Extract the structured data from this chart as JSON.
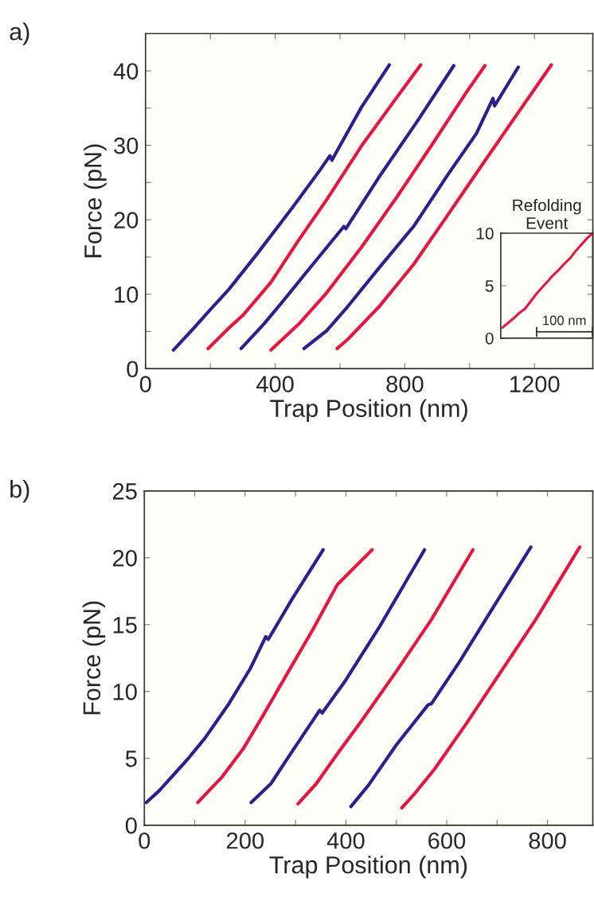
{
  "chart_data": [
    {
      "type": "line",
      "xlabel": "Trap Position (nm)",
      "ylabel": "Force (pN)",
      "annotations": [
        "a)"
      ],
      "xlim": [
        0,
        1380
      ],
      "ylim": [
        0,
        45
      ],
      "xticks": [
        0,
        {
          "value": 200,
          "label": null
        },
        400,
        {
          "value": 600,
          "label": null
        },
        800,
        {
          "value": 1000,
          "label": null
        },
        1200
      ],
      "yticks": [
        0,
        {
          "value": 5,
          "label": null
        },
        10,
        {
          "value": 15,
          "label": null
        },
        20,
        {
          "value": 25,
          "label": null
        },
        30,
        {
          "value": 35,
          "label": null
        },
        40
      ],
      "series": [
        {
          "color": "#2e1f8c",
          "x": [
            86,
            150,
            193,
            258,
            344,
            451,
            537,
            569,
            575,
            666,
            752
          ],
          "values": [
            2.5,
            5.5,
            7.6,
            10.7,
            15.4,
            21.5,
            26.6,
            28.6,
            28.0,
            35.1,
            40.8
          ]
        },
        {
          "color": "#e3173f",
          "x": [
            193,
            258,
            301,
            387,
            473,
            559,
            666,
            773,
            849
          ],
          "values": [
            2.7,
            5.5,
            7.2,
            11.6,
            17.3,
            22.7,
            29.9,
            36.3,
            40.8
          ]
        },
        {
          "color": "#2e1f8c",
          "x": [
            295,
            365,
            419,
            516,
            612,
            618,
            720,
            838,
            951
          ],
          "values": [
            2.7,
            6.0,
            8.8,
            14.0,
            19.1,
            18.8,
            25.7,
            33.2,
            40.7
          ]
        },
        {
          "color": "#e3173f",
          "x": [
            387,
            473,
            559,
            666,
            773,
            881,
            988,
            1047
          ],
          "values": [
            2.5,
            6.0,
            10.2,
            16.3,
            22.9,
            29.9,
            37.0,
            40.7
          ]
        },
        {
          "color": "#2e1f8c",
          "x": [
            489,
            559,
            623,
            720,
            827,
            935,
            1021,
            1072,
            1077,
            1150
          ],
          "values": [
            2.7,
            5.1,
            8.3,
            13.5,
            19.1,
            26.2,
            31.6,
            36.3,
            35.3,
            40.5
          ]
        },
        {
          "color": "#e3173f",
          "x": [
            591,
            623,
            720,
            827,
            935,
            1042,
            1150,
            1252
          ],
          "values": [
            2.7,
            3.9,
            8.3,
            14.0,
            20.8,
            27.6,
            34.4,
            40.8
          ]
        }
      ]
    },
    {
      "type": "line",
      "title": "Refolding\nEvent",
      "annotations": [
        "100 nm"
      ],
      "categories": [
        null,
        null,
        null,
        null,
        null,
        null,
        null,
        null,
        null,
        null,
        null,
        null,
        null,
        null,
        null,
        null,
        null
      ],
      "ylim": [
        0,
        10
      ],
      "yticks": [
        0,
        5,
        10
      ],
      "tick_labels": "y",
      "series": [
        {
          "color": "#e3173f",
          "values": [
            1.0,
            1.45,
            1.9,
            2.4,
            2.8,
            3.5,
            4.2,
            4.8,
            5.4,
            6.0,
            6.5,
            7.1,
            7.6,
            8.3,
            8.9,
            9.5,
            10.0
          ]
        }
      ]
    },
    {
      "type": "line",
      "xlabel": "Trap Position (nm)",
      "ylabel": "Force (pN)",
      "annotations": [
        "b)"
      ],
      "xlim": [
        0,
        890
      ],
      "ylim": [
        0,
        25
      ],
      "xticks": [
        0,
        {
          "value": 100,
          "label": null
        },
        200,
        {
          "value": 300,
          "label": null
        },
        400,
        {
          "value": 500,
          "label": null
        },
        600,
        {
          "value": 700,
          "label": null
        },
        800
      ],
      "yticks": [
        0,
        5,
        10,
        15,
        20,
        25
      ],
      "series": [
        {
          "color": "#2e1f8c",
          "x": [
            4,
            30,
            85,
            120,
            168,
            210,
            241,
            246,
            293,
            355
          ],
          "values": [
            1.7,
            2.6,
            4.9,
            6.5,
            9.1,
            11.7,
            14.1,
            13.9,
            16.9,
            20.6
          ]
        },
        {
          "color": "#e3173f",
          "x": [
            106,
            154,
            196,
            237,
            286,
            334,
            383,
            452
          ],
          "values": [
            1.7,
            3.6,
            5.7,
            8.3,
            11.5,
            14.6,
            18.0,
            20.6
          ]
        },
        {
          "color": "#2e1f8c",
          "x": [
            212,
            251,
            293,
            348,
            353,
            397,
            466,
            556
          ],
          "values": [
            1.7,
            3.1,
            5.5,
            8.6,
            8.4,
            10.7,
            14.8,
            20.6
          ]
        },
        {
          "color": "#e3173f",
          "x": [
            305,
            341,
            386,
            431,
            500,
            570,
            652
          ],
          "values": [
            1.6,
            3.1,
            5.5,
            7.8,
            11.5,
            15.4,
            20.6
          ]
        },
        {
          "color": "#2e1f8c",
          "x": [
            410,
            445,
            500,
            563,
            570,
            625,
            694,
            767
          ],
          "values": [
            1.4,
            3.0,
            6.0,
            9.0,
            9.1,
            12.2,
            16.4,
            20.8
          ]
        },
        {
          "color": "#e3173f",
          "x": [
            511,
            535,
            576,
            639,
            708,
            777,
            864
          ],
          "values": [
            1.3,
            2.3,
            4.2,
            7.6,
            11.5,
            15.4,
            20.8
          ]
        }
      ]
    }
  ]
}
